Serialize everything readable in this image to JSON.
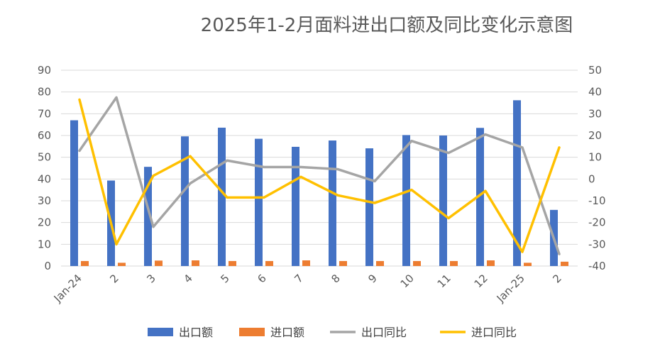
{
  "chart_data": {
    "type": "bar+line",
    "title": "2025年1-2月面料进出口额及同比变化示意图",
    "categories": [
      "Jan-24",
      "2",
      "3",
      "4",
      "5",
      "6",
      "7",
      "8",
      "9",
      "10",
      "11",
      "12",
      "Jan-25",
      "2"
    ],
    "left_axis": {
      "min": 0,
      "max": 90,
      "ticks": [
        "0",
        "10",
        "20",
        "30",
        "40",
        "50",
        "60",
        "70",
        "80",
        "90"
      ]
    },
    "right_axis": {
      "min": -40,
      "max": 50,
      "ticks": [
        "-40",
        "-30",
        "-20",
        "-10",
        "0",
        "10",
        "20",
        "30",
        "40",
        "50"
      ]
    },
    "grid": true,
    "legend_position": "bottom",
    "series": [
      {
        "name": "出口额",
        "type": "bar",
        "axis": "left",
        "color": "#4472C4",
        "values": [
          67,
          39.3,
          45.6,
          59.6,
          63.6,
          58.5,
          54.8,
          57.7,
          54.1,
          60.2,
          60,
          63.5,
          76.2,
          25.8
        ]
      },
      {
        "name": "进口额",
        "type": "bar",
        "axis": "left",
        "color": "#ED7D31",
        "values": [
          2.3,
          1.5,
          2.5,
          2.6,
          2.3,
          2.3,
          2.6,
          2.3,
          2.3,
          2.3,
          2.3,
          2.6,
          1.5,
          2.0
        ]
      },
      {
        "name": "出口同比",
        "type": "line",
        "axis": "right",
        "color": "#A5A5A5",
        "values": [
          13,
          37.5,
          -22,
          -2,
          8.5,
          5.5,
          5.5,
          4.5,
          -1,
          17.5,
          12,
          20.5,
          14.5,
          -34.5
        ]
      },
      {
        "name": "进口同比",
        "type": "line",
        "axis": "right",
        "color": "#FFC000",
        "values": [
          36.5,
          -30,
          1.5,
          10.5,
          -8.5,
          -8.5,
          1,
          -7.5,
          -11,
          -5,
          -18,
          -5.5,
          -33.5,
          14.5
        ]
      }
    ]
  }
}
